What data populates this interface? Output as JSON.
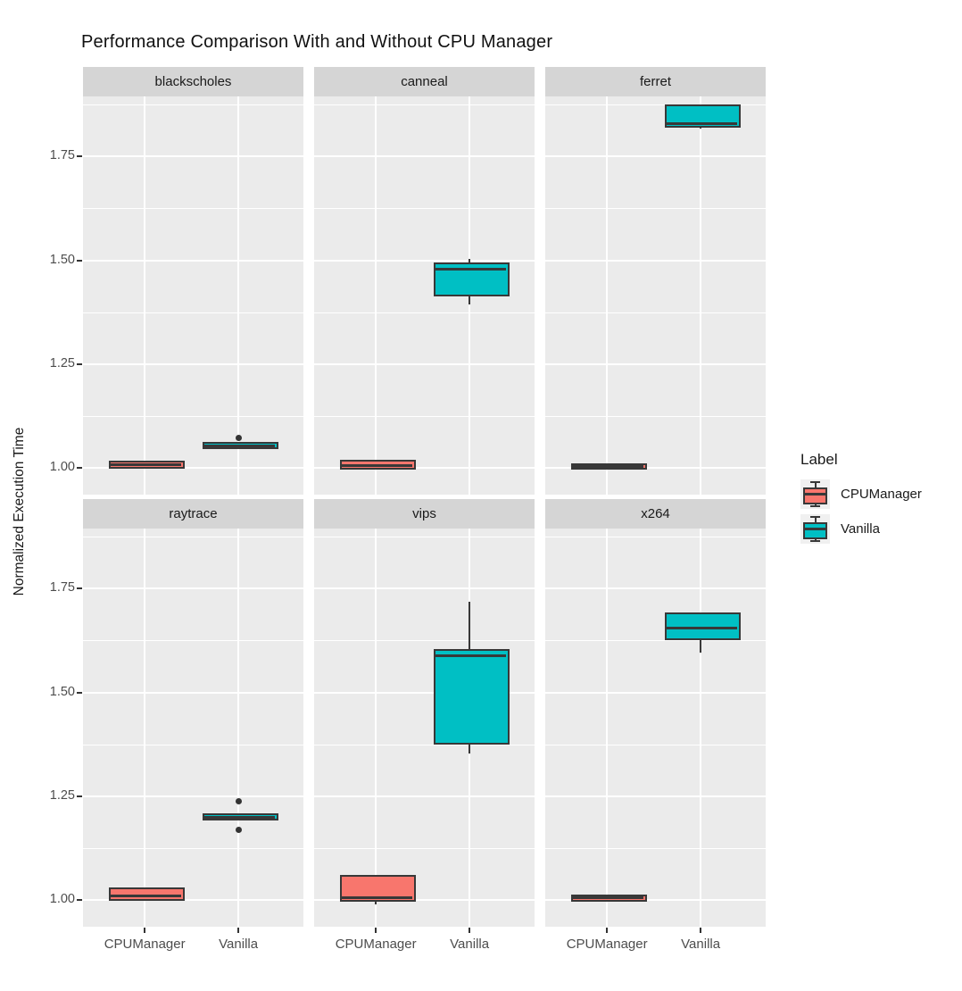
{
  "chart_data": {
    "type": "boxplot",
    "title": "Performance Comparison With and Without CPU Manager",
    "xlabel": "",
    "ylabel": "Normalized Execution Time",
    "ylim": [
      0.935,
      1.895
    ],
    "yticks": [
      1.0,
      1.25,
      1.5,
      1.75
    ],
    "ytick_labels": [
      "1.00",
      "1.25",
      "1.50",
      "1.75"
    ],
    "minor_gridlines_y": [
      1.125,
      1.375,
      1.625,
      1.875
    ],
    "grid": "on",
    "x_categories": [
      "CPUManager",
      "Vanilla"
    ],
    "legend": {
      "title": "Label",
      "position": "right",
      "entries": [
        {
          "label": "CPUManager",
          "color": "#F8766D"
        },
        {
          "label": "Vanilla",
          "color": "#00BFC4"
        }
      ]
    },
    "facets": [
      {
        "name": "blackscholes",
        "boxes": [
          {
            "label": "CPUManager",
            "whisker_low": 1.0,
            "q1": 1.002,
            "median": 1.007,
            "q3": 1.012,
            "whisker_high": 1.013,
            "outliers": []
          },
          {
            "label": "Vanilla",
            "whisker_low": 1.046,
            "q1": 1.048,
            "median": 1.053,
            "q3": 1.058,
            "whisker_high": 1.06,
            "outliers": [
              1.072
            ]
          }
        ]
      },
      {
        "name": "canneal",
        "boxes": [
          {
            "label": "CPUManager",
            "whisker_low": 0.998,
            "q1": 1.0,
            "median": 1.004,
            "q3": 1.014,
            "whisker_high": 1.015,
            "outliers": []
          },
          {
            "label": "Vanilla",
            "whisker_low": 1.394,
            "q1": 1.418,
            "median": 1.478,
            "q3": 1.49,
            "whisker_high": 1.503,
            "outliers": []
          }
        ]
      },
      {
        "name": "ferret",
        "boxes": [
          {
            "label": "CPUManager",
            "whisker_low": 0.999,
            "q1": 1.0,
            "median": 1.003,
            "q3": 1.007,
            "whisker_high": 1.008,
            "outliers": []
          },
          {
            "label": "Vanilla",
            "whisker_low": 1.818,
            "q1": 1.824,
            "median": 1.829,
            "q3": 1.871,
            "whisker_high": 1.871,
            "outliers": []
          }
        ]
      },
      {
        "name": "raytrace",
        "boxes": [
          {
            "label": "CPUManager",
            "whisker_low": 0.997,
            "q1": 1.001,
            "median": 1.01,
            "q3": 1.025,
            "whisker_high": 1.026,
            "outliers": []
          },
          {
            "label": "Vanilla",
            "whisker_low": 1.194,
            "q1": 1.195,
            "median": 1.199,
            "q3": 1.203,
            "whisker_high": 1.204,
            "outliers": [
              1.238,
              1.168
            ]
          }
        ]
      },
      {
        "name": "vips",
        "boxes": [
          {
            "label": "CPUManager",
            "whisker_low": 0.988,
            "q1": 1.0,
            "median": 1.006,
            "q3": 1.055,
            "whisker_high": 1.056,
            "outliers": []
          },
          {
            "label": "Vanilla",
            "whisker_low": 1.352,
            "q1": 1.378,
            "median": 1.588,
            "q3": 1.6,
            "whisker_high": 1.718,
            "outliers": []
          }
        ]
      },
      {
        "name": "x264",
        "boxes": [
          {
            "label": "CPUManager",
            "whisker_low": 0.999,
            "q1": 1.0,
            "median": 1.004,
            "q3": 1.008,
            "whisker_high": 1.009,
            "outliers": []
          },
          {
            "label": "Vanilla",
            "whisker_low": 1.596,
            "q1": 1.63,
            "median": 1.656,
            "q3": 1.688,
            "whisker_high": 1.69,
            "outliers": []
          }
        ]
      }
    ],
    "colors": {
      "panel_background": "#EBEBEB",
      "strip_background": "#D5D5D5",
      "gridline": "#FFFFFF",
      "box_border": "#383838",
      "tick_mark": "#333333",
      "tick_label_text": "#4D4D4D",
      "text": "#1A1A1A",
      "legend_key_background": "#F0F0F0"
    }
  }
}
